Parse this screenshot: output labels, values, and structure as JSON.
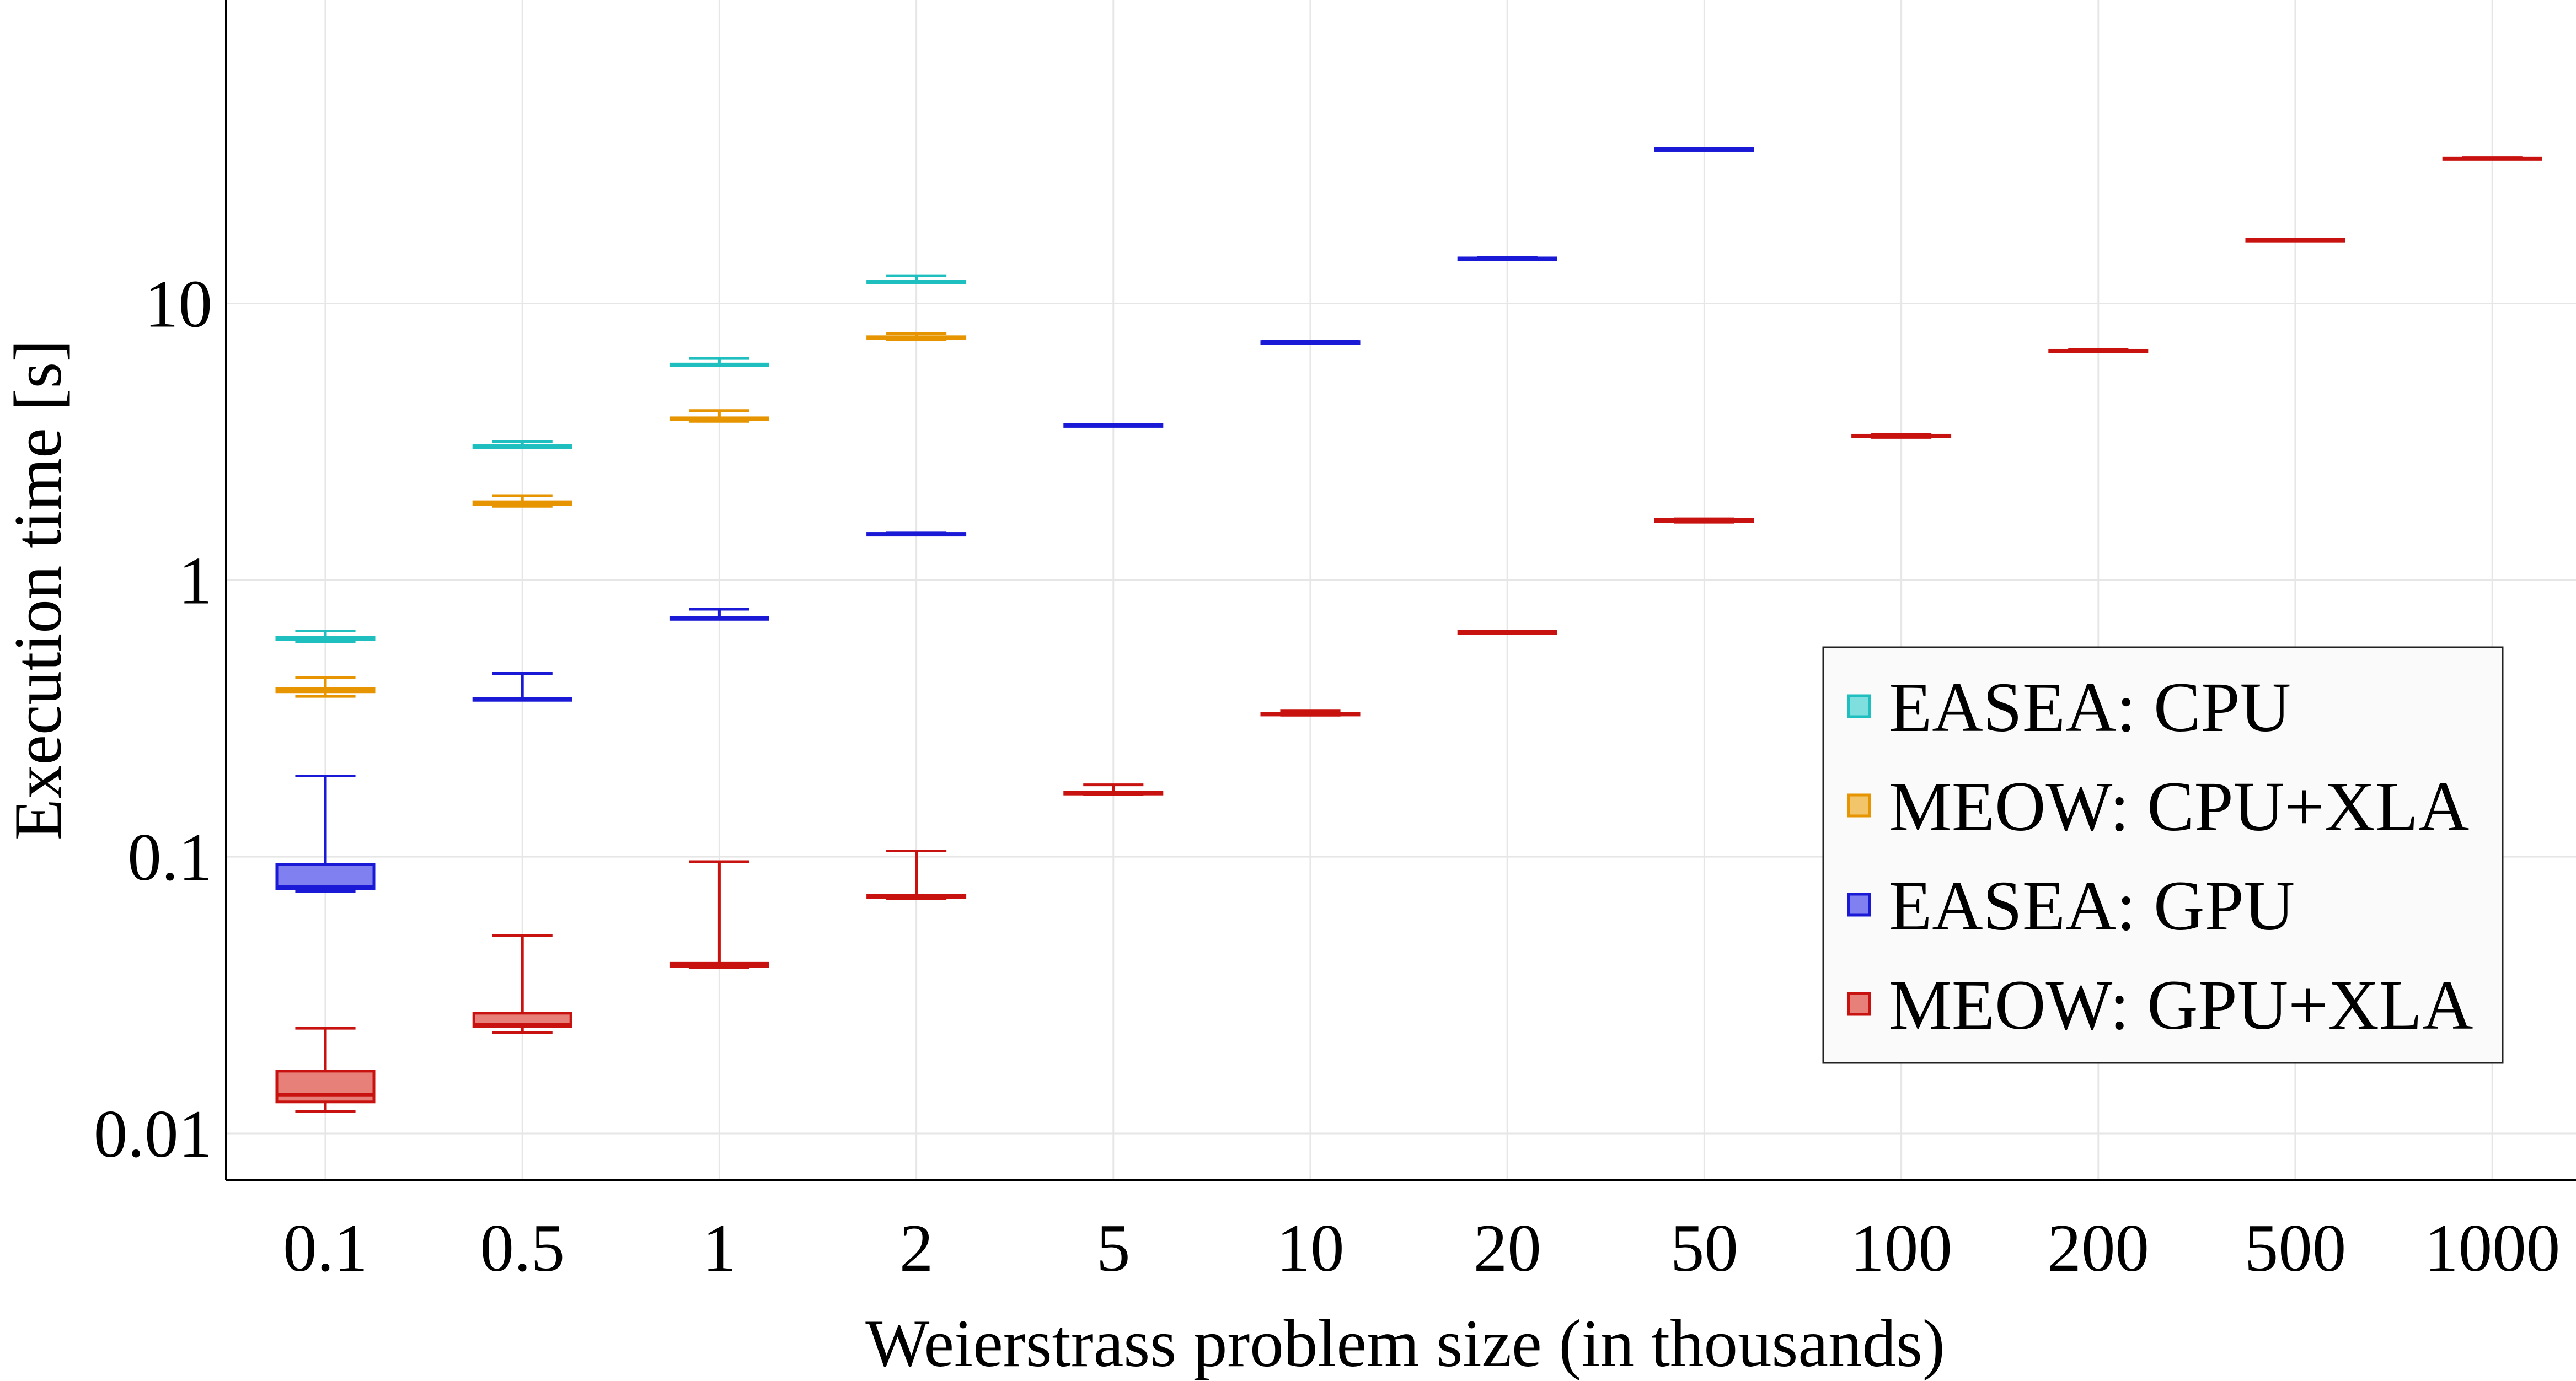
{
  "chart_data": {
    "type": "box",
    "xlabel": "Weierstrass problem size (in thousands)",
    "ylabel": "Execution time [s]",
    "y_scale": "log",
    "ylim": [
      0.0068,
      125
    ],
    "y_ticks": [
      {
        "value": 0.01,
        "label": "0.01"
      },
      {
        "value": 0.1,
        "label": "0.1"
      },
      {
        "value": 1,
        "label": "1"
      },
      {
        "value": 10,
        "label": "10"
      }
    ],
    "categories": [
      "0.1",
      "0.5",
      "1",
      "2",
      "5",
      "10",
      "20",
      "50",
      "100",
      "200",
      "500",
      "1000"
    ],
    "grid": true,
    "legend_position": "right",
    "series": [
      {
        "name": "EASEA: CPU",
        "color": "#1fbfbf",
        "fill": "#7fdfdf",
        "boxes": [
          {
            "category": "0.1",
            "min": 0.6,
            "q1": 0.61,
            "median": 0.615,
            "q3": 0.62,
            "max": 0.655
          },
          {
            "category": "0.5",
            "min": 3.02,
            "q1": 3.04,
            "median": 3.05,
            "q3": 3.06,
            "max": 3.17
          },
          {
            "category": "1",
            "min": 5.97,
            "q1": 6.0,
            "median": 6.02,
            "q3": 6.04,
            "max": 6.33
          },
          {
            "category": "2",
            "min": 11.9,
            "q1": 11.95,
            "median": 12.0,
            "q3": 12.05,
            "max": 12.6
          }
        ]
      },
      {
        "name": "MEOW: CPU+XLA",
        "color": "#e69500",
        "fill": "#f2c56b",
        "boxes": [
          {
            "category": "0.1",
            "min": 0.38,
            "q1": 0.395,
            "median": 0.4,
            "q3": 0.405,
            "max": 0.445
          },
          {
            "category": "0.5",
            "min": 1.85,
            "q1": 1.88,
            "median": 1.9,
            "q3": 1.92,
            "max": 2.02
          },
          {
            "category": "1",
            "min": 3.75,
            "q1": 3.8,
            "median": 3.83,
            "q3": 3.86,
            "max": 4.1
          },
          {
            "category": "2",
            "min": 7.4,
            "q1": 7.47,
            "median": 7.52,
            "q3": 7.58,
            "max": 7.8
          }
        ]
      },
      {
        "name": "EASEA: GPU",
        "color": "#1a1ad6",
        "fill": "#8080f0",
        "boxes": [
          {
            "category": "0.1",
            "min": 0.075,
            "q1": 0.0765,
            "median": 0.078,
            "q3": 0.094,
            "max": 0.196
          },
          {
            "category": "0.5",
            "min": 0.37,
            "q1": 0.371,
            "median": 0.372,
            "q3": 0.373,
            "max": 0.46
          },
          {
            "category": "1",
            "min": 0.725,
            "q1": 0.728,
            "median": 0.73,
            "q3": 0.732,
            "max": 0.785
          },
          {
            "category": "2",
            "min": 1.46,
            "q1": 1.465,
            "median": 1.47,
            "q3": 1.475,
            "max": 1.48
          },
          {
            "category": "5",
            "min": 3.63,
            "q1": 3.635,
            "median": 3.64,
            "q3": 3.645,
            "max": 3.65
          },
          {
            "category": "10",
            "min": 7.25,
            "q1": 7.26,
            "median": 7.27,
            "q3": 7.28,
            "max": 7.29
          },
          {
            "category": "20",
            "min": 14.45,
            "q1": 14.5,
            "median": 14.55,
            "q3": 14.6,
            "max": 14.65
          },
          {
            "category": "50",
            "min": 36.0,
            "q1": 36.1,
            "median": 36.2,
            "q3": 36.3,
            "max": 36.4
          }
        ]
      },
      {
        "name": "MEOW: GPU+XLA",
        "color": "#c8120f",
        "fill": "#e8807a",
        "boxes": [
          {
            "category": "0.1",
            "min": 0.012,
            "q1": 0.013,
            "median": 0.0138,
            "q3": 0.0168,
            "max": 0.024
          },
          {
            "category": "0.5",
            "min": 0.0232,
            "q1": 0.0243,
            "median": 0.0247,
            "q3": 0.0272,
            "max": 0.052
          },
          {
            "category": "1",
            "min": 0.0398,
            "q1": 0.0402,
            "median": 0.0405,
            "q3": 0.0412,
            "max": 0.096
          },
          {
            "category": "2",
            "min": 0.0705,
            "q1": 0.0712,
            "median": 0.0718,
            "q3": 0.0725,
            "max": 0.105
          },
          {
            "category": "5",
            "min": 0.168,
            "q1": 0.169,
            "median": 0.17,
            "q3": 0.171,
            "max": 0.182
          },
          {
            "category": "10",
            "min": 0.325,
            "q1": 0.327,
            "median": 0.328,
            "q3": 0.33,
            "max": 0.338
          },
          {
            "category": "20",
            "min": 0.645,
            "q1": 0.647,
            "median": 0.65,
            "q3": 0.652,
            "max": 0.655
          },
          {
            "category": "50",
            "min": 1.62,
            "q1": 1.63,
            "median": 1.64,
            "q3": 1.655,
            "max": 1.665
          },
          {
            "category": "100",
            "min": 3.28,
            "q1": 3.3,
            "median": 3.32,
            "q3": 3.34,
            "max": 3.36
          },
          {
            "category": "200",
            "min": 6.7,
            "q1": 6.72,
            "median": 6.75,
            "q3": 6.77,
            "max": 6.8
          },
          {
            "category": "500",
            "min": 16.9,
            "q1": 16.95,
            "median": 17.0,
            "q3": 17.05,
            "max": 17.1
          },
          {
            "category": "1000",
            "min": 33.3,
            "q1": 33.4,
            "median": 33.5,
            "q3": 33.6,
            "max": 33.7
          }
        ]
      }
    ]
  }
}
